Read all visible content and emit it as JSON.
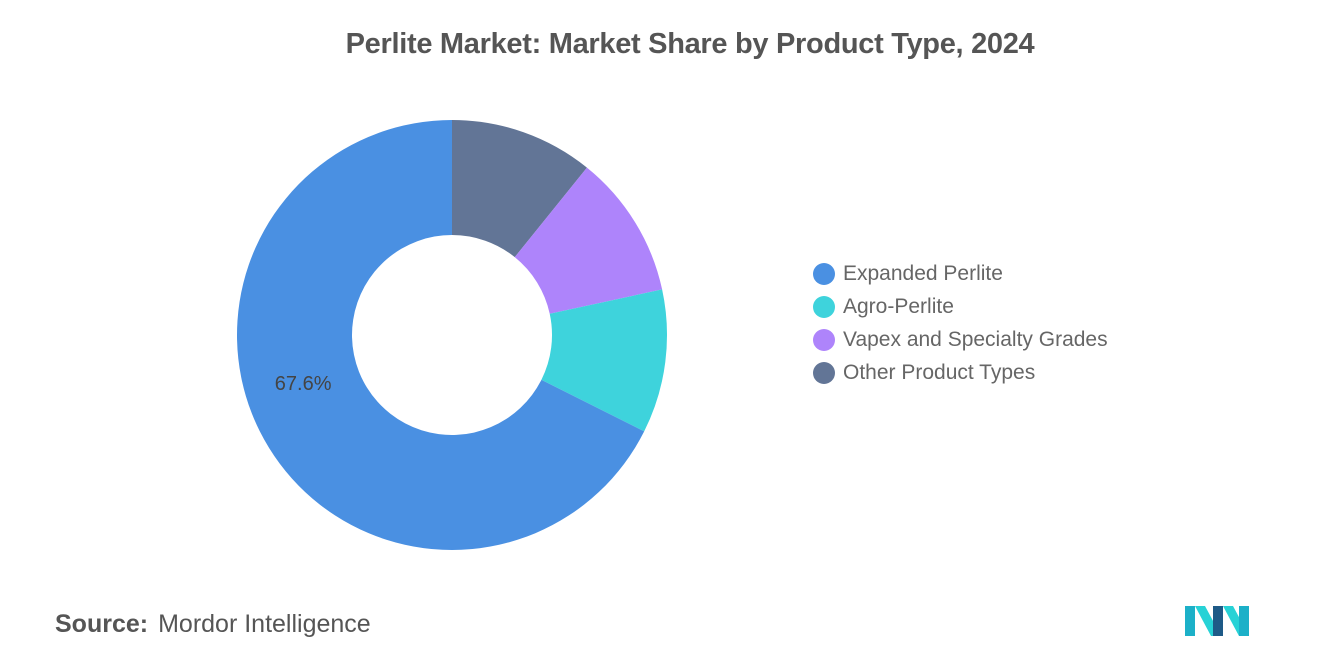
{
  "title": "Perlite Market: Market Share by Product Type, 2024",
  "chart_data": {
    "type": "pie",
    "style": "donut",
    "series": [
      {
        "name": "Expanded Perlite",
        "value": 67.6,
        "color": "#4A90E2",
        "label": "67.6%"
      },
      {
        "name": "Agro-Perlite",
        "value": 10.8,
        "color": "#3ED3DC",
        "label": ""
      },
      {
        "name": "Vapex and Specialty Grades",
        "value": 10.8,
        "color": "#AE84FB",
        "label": ""
      },
      {
        "name": "Other Product Types",
        "value": 10.8,
        "color": "#627596",
        "label": ""
      }
    ],
    "legend_position": "right"
  },
  "legend": [
    {
      "label": "Expanded Perlite",
      "color": "#4A90E2"
    },
    {
      "label": "Agro-Perlite",
      "color": "#3ED3DC"
    },
    {
      "label": "Vapex and Specialty Grades",
      "color": "#AE84FB"
    },
    {
      "label": "Other Product Types",
      "color": "#627596"
    }
  ],
  "source": {
    "label": "Source:",
    "value": "Mordor Intelligence"
  },
  "logo": {
    "icon": "mordor-intelligence-logo",
    "colors": [
      "#1CB0C8",
      "#27D2D6",
      "#1E5A87"
    ]
  }
}
